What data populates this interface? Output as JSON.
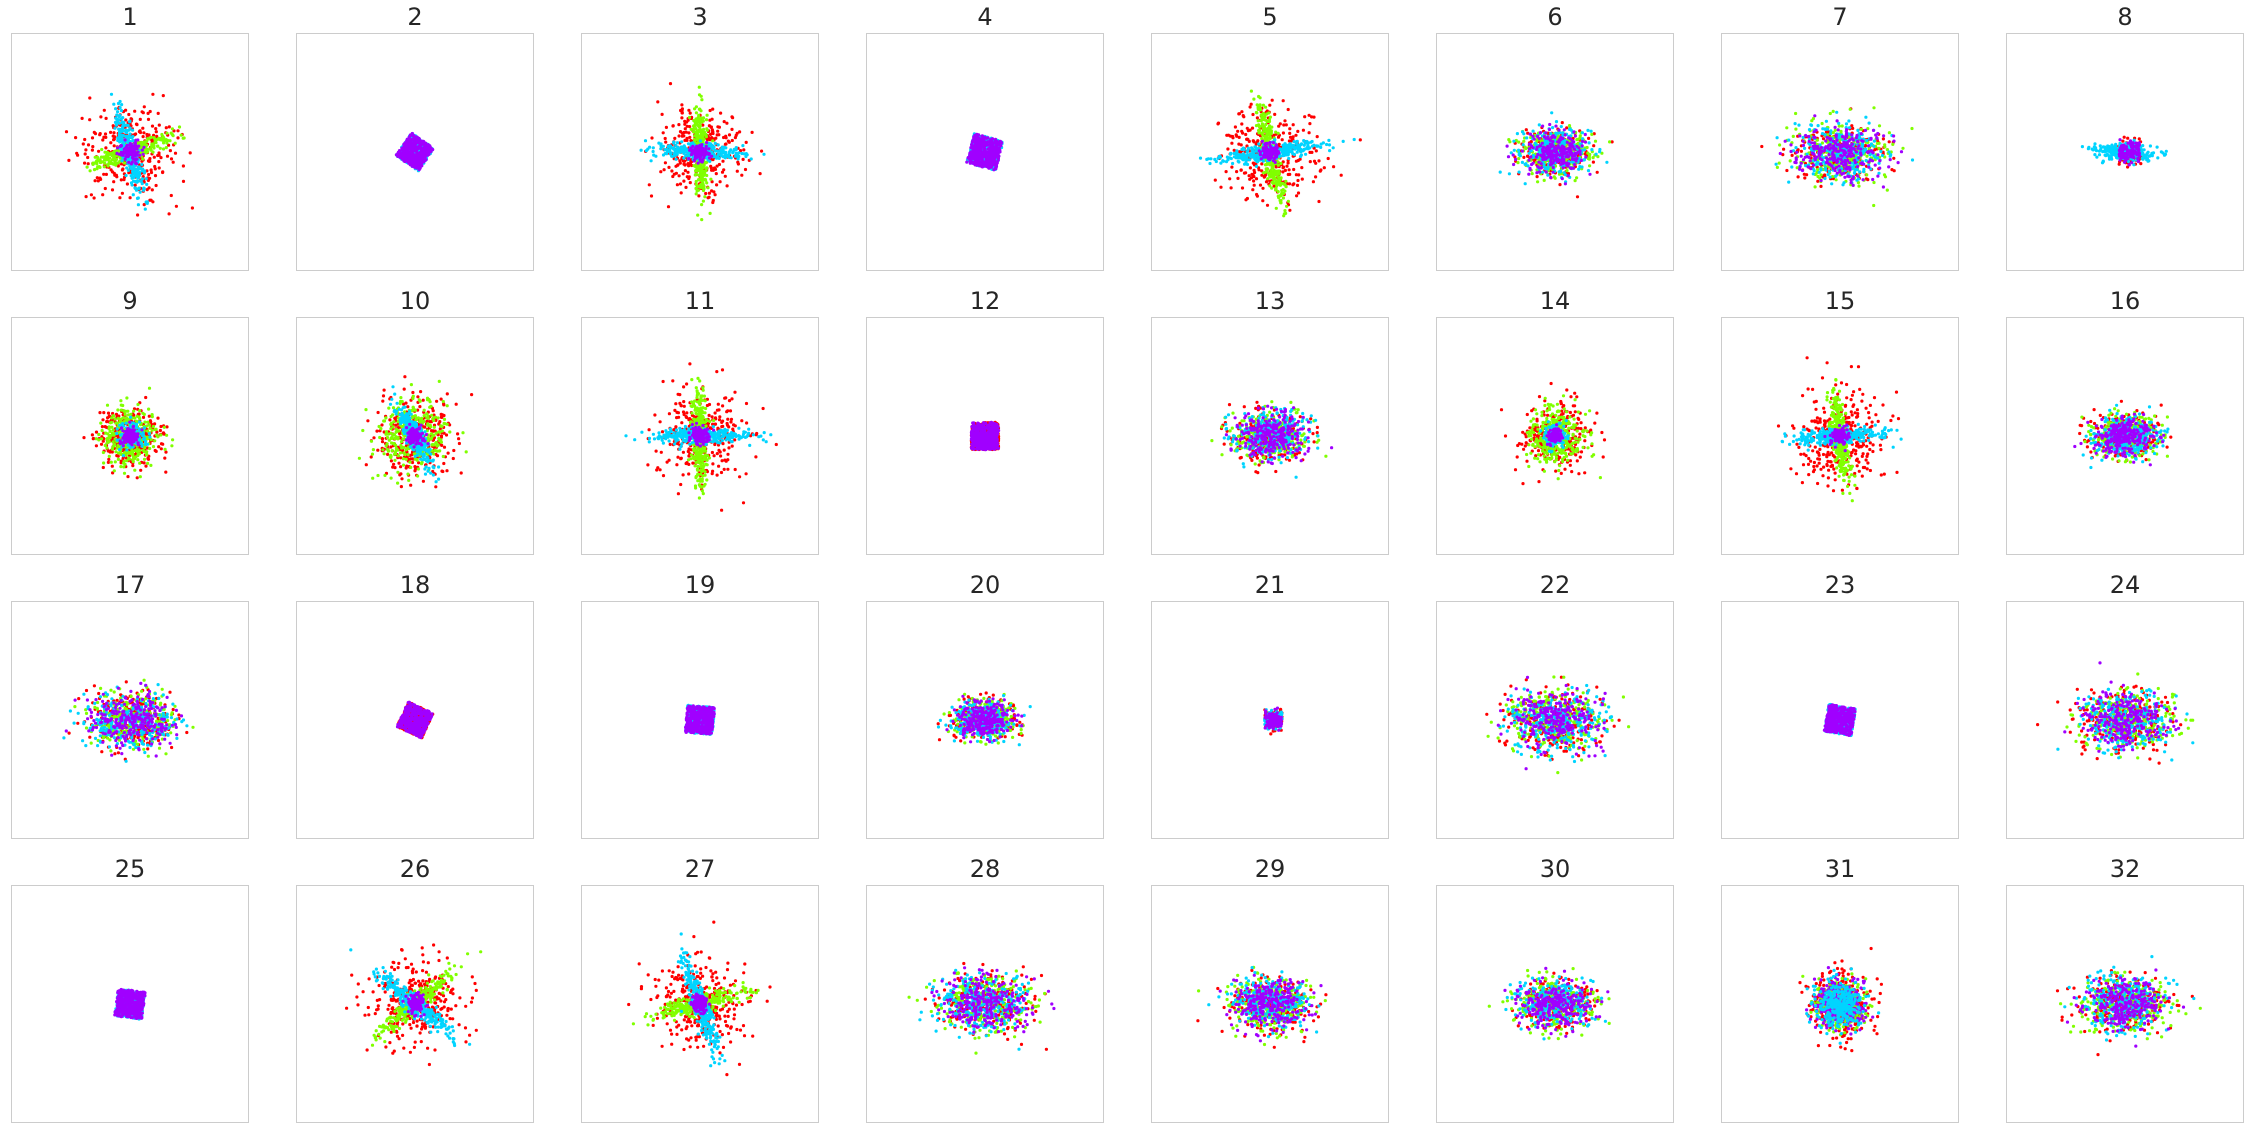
{
  "figure": {
    "layout": "4 rows x 8 columns",
    "background": "#ffffff",
    "frame_color": "#cccccc",
    "title_color": "#262626"
  },
  "colors": {
    "red": "#ff0000",
    "green": "#80ff00",
    "cyan": "#00d4ff",
    "purple": "#a000ff"
  },
  "chart_data": [
    {
      "title": "1",
      "type": "scatter",
      "series": [
        {
          "color": "red",
          "shape": "disc",
          "spread": 1.0
        },
        {
          "color": "green",
          "shape": "bar",
          "angle": -20,
          "spread": 0.8
        },
        {
          "color": "cyan",
          "shape": "bar",
          "angle": 75,
          "spread": 0.8
        },
        {
          "color": "purple",
          "shape": "blob",
          "spread": 0.12
        }
      ]
    },
    {
      "title": "2",
      "type": "scatter",
      "series": [
        {
          "color": "cyan",
          "shape": "square",
          "spread": 0.5,
          "angle": 35
        },
        {
          "color": "purple",
          "shape": "square",
          "spread": 0.5,
          "angle": 35
        }
      ]
    },
    {
      "title": "3",
      "type": "scatter",
      "series": [
        {
          "color": "red",
          "shape": "disc",
          "spread": 0.85
        },
        {
          "color": "green",
          "shape": "bar",
          "angle": 88,
          "spread": 0.8
        },
        {
          "color": "cyan",
          "shape": "bar",
          "angle": 2,
          "spread": 0.8
        },
        {
          "color": "purple",
          "shape": "blob",
          "spread": 0.1
        }
      ]
    },
    {
      "title": "4",
      "type": "scatter",
      "series": [
        {
          "color": "cyan",
          "shape": "square",
          "spread": 0.55,
          "angle": 15
        },
        {
          "color": "purple",
          "shape": "square",
          "spread": 0.55,
          "angle": 15
        }
      ]
    },
    {
      "title": "5",
      "type": "scatter",
      "series": [
        {
          "color": "red",
          "shape": "disc",
          "spread": 1.0
        },
        {
          "color": "green",
          "shape": "bar",
          "angle": 78,
          "spread": 0.85
        },
        {
          "color": "cyan",
          "shape": "bar",
          "angle": -8,
          "spread": 1.0
        },
        {
          "color": "purple",
          "shape": "blob",
          "spread": 0.1
        }
      ]
    },
    {
      "title": "6",
      "type": "scatter",
      "series": [
        {
          "color": "red",
          "shape": "cloud",
          "spread": 0.7
        },
        {
          "color": "green",
          "shape": "cloud",
          "spread": 0.7
        },
        {
          "color": "cyan",
          "shape": "cloud",
          "spread": 0.7
        },
        {
          "color": "purple",
          "shape": "cloud",
          "spread": 0.6
        }
      ]
    },
    {
      "title": "7",
      "type": "scatter",
      "series": [
        {
          "color": "red",
          "shape": "cloud",
          "spread": 0.9
        },
        {
          "color": "green",
          "shape": "cloud",
          "spread": 0.9
        },
        {
          "color": "cyan",
          "shape": "cloud",
          "spread": 0.9
        },
        {
          "color": "purple",
          "shape": "cloud",
          "spread": 0.8
        }
      ]
    },
    {
      "title": "8",
      "type": "scatter",
      "series": [
        {
          "color": "red",
          "shape": "wedge",
          "spread": 0.4
        },
        {
          "color": "cyan",
          "shape": "bar",
          "angle": 5,
          "spread": 0.5
        },
        {
          "color": "purple",
          "shape": "wedge",
          "spread": 0.35
        }
      ]
    },
    {
      "title": "9",
      "type": "scatter",
      "series": [
        {
          "color": "red",
          "shape": "disc",
          "spread": 0.65
        },
        {
          "color": "green",
          "shape": "disc",
          "spread": 0.6
        },
        {
          "color": "cyan",
          "shape": "blob",
          "spread": 0.18
        },
        {
          "color": "purple",
          "shape": "blob",
          "spread": 0.1
        }
      ]
    },
    {
      "title": "10",
      "type": "scatter",
      "series": [
        {
          "color": "red",
          "shape": "disc",
          "spread": 0.85
        },
        {
          "color": "green",
          "shape": "disc",
          "spread": 0.75
        },
        {
          "color": "cyan",
          "shape": "bar",
          "angle": 62,
          "spread": 0.6
        },
        {
          "color": "purple",
          "shape": "blob",
          "spread": 0.1
        }
      ]
    },
    {
      "title": "11",
      "type": "scatter",
      "series": [
        {
          "color": "red",
          "shape": "disc",
          "spread": 0.95
        },
        {
          "color": "green",
          "shape": "bar",
          "angle": 90,
          "spread": 0.85
        },
        {
          "color": "cyan",
          "shape": "bar",
          "angle": 0,
          "spread": 0.95
        },
        {
          "color": "purple",
          "shape": "blob",
          "spread": 0.1
        }
      ]
    },
    {
      "title": "12",
      "type": "scatter",
      "series": [
        {
          "color": "red",
          "shape": "square",
          "spread": 0.5,
          "angle": 0
        },
        {
          "color": "purple",
          "shape": "square",
          "spread": 0.5,
          "angle": 0
        }
      ]
    },
    {
      "title": "13",
      "type": "scatter",
      "series": [
        {
          "color": "red",
          "shape": "cloud",
          "spread": 0.75
        },
        {
          "color": "green",
          "shape": "cloud",
          "spread": 0.75
        },
        {
          "color": "cyan",
          "shape": "cloud",
          "spread": 0.75
        },
        {
          "color": "purple",
          "shape": "cloud",
          "spread": 0.7
        }
      ]
    },
    {
      "title": "14",
      "type": "scatter",
      "series": [
        {
          "color": "red",
          "shape": "disc",
          "spread": 0.7
        },
        {
          "color": "green",
          "shape": "disc",
          "spread": 0.6
        },
        {
          "color": "cyan",
          "shape": "blob",
          "spread": 0.15
        },
        {
          "color": "purple",
          "shape": "blob",
          "spread": 0.08
        }
      ]
    },
    {
      "title": "15",
      "type": "scatter",
      "series": [
        {
          "color": "red",
          "shape": "disc",
          "spread": 1.0
        },
        {
          "color": "green",
          "shape": "bar",
          "angle": 82,
          "spread": 0.8
        },
        {
          "color": "cyan",
          "shape": "bar",
          "angle": -3,
          "spread": 0.9
        },
        {
          "color": "purple",
          "shape": "blob",
          "spread": 0.1
        }
      ]
    },
    {
      "title": "16",
      "type": "scatter",
      "series": [
        {
          "color": "red",
          "shape": "cloud",
          "spread": 0.65
        },
        {
          "color": "green",
          "shape": "cloud",
          "spread": 0.65
        },
        {
          "color": "cyan",
          "shape": "cloud",
          "spread": 0.65
        },
        {
          "color": "purple",
          "shape": "cloud",
          "spread": 0.6
        }
      ]
    },
    {
      "title": "17",
      "type": "scatter",
      "series": [
        {
          "color": "red",
          "shape": "cloud",
          "spread": 0.85
        },
        {
          "color": "green",
          "shape": "cloud",
          "spread": 0.85
        },
        {
          "color": "cyan",
          "shape": "cloud",
          "spread": 0.85
        },
        {
          "color": "purple",
          "shape": "cloud",
          "spread": 0.8
        }
      ]
    },
    {
      "title": "18",
      "type": "scatter",
      "series": [
        {
          "color": "red",
          "shape": "square",
          "spread": 0.5,
          "angle": 25
        },
        {
          "color": "purple",
          "shape": "square",
          "spread": 0.5,
          "angle": 25
        }
      ]
    },
    {
      "title": "19",
      "type": "scatter",
      "series": [
        {
          "color": "cyan",
          "shape": "square",
          "spread": 0.5,
          "angle": 5
        },
        {
          "color": "purple",
          "shape": "square",
          "spread": 0.5,
          "angle": 5
        }
      ]
    },
    {
      "title": "20",
      "type": "scatter",
      "series": [
        {
          "color": "red",
          "shape": "cloud",
          "spread": 0.6
        },
        {
          "color": "green",
          "shape": "cloud",
          "spread": 0.6
        },
        {
          "color": "cyan",
          "shape": "cloud",
          "spread": 0.6
        },
        {
          "color": "purple",
          "shape": "cloud",
          "spread": 0.55
        }
      ]
    },
    {
      "title": "21",
      "type": "scatter",
      "series": [
        {
          "color": "red",
          "shape": "wedge",
          "spread": 0.3
        },
        {
          "color": "cyan",
          "shape": "wedge",
          "spread": 0.3
        },
        {
          "color": "purple",
          "shape": "wedge",
          "spread": 0.28
        }
      ]
    },
    {
      "title": "22",
      "type": "scatter",
      "series": [
        {
          "color": "red",
          "shape": "cloud",
          "spread": 0.95
        },
        {
          "color": "green",
          "shape": "cloud",
          "spread": 0.95
        },
        {
          "color": "cyan",
          "shape": "cloud",
          "spread": 0.95
        },
        {
          "color": "purple",
          "shape": "cloud",
          "spread": 0.9
        }
      ]
    },
    {
      "title": "23",
      "type": "scatter",
      "series": [
        {
          "color": "cyan",
          "shape": "square",
          "spread": 0.5,
          "angle": 10
        },
        {
          "color": "purple",
          "shape": "square",
          "spread": 0.5,
          "angle": 10
        }
      ]
    },
    {
      "title": "24",
      "type": "scatter",
      "series": [
        {
          "color": "red",
          "shape": "cloud",
          "spread": 0.9
        },
        {
          "color": "green",
          "shape": "cloud",
          "spread": 0.9
        },
        {
          "color": "cyan",
          "shape": "cloud",
          "spread": 0.9
        },
        {
          "color": "purple",
          "shape": "cloud",
          "spread": 0.85
        }
      ]
    },
    {
      "title": "25",
      "type": "scatter",
      "series": [
        {
          "color": "cyan",
          "shape": "square",
          "spread": 0.5,
          "angle": 8
        },
        {
          "color": "purple",
          "shape": "square",
          "spread": 0.5,
          "angle": 8
        }
      ]
    },
    {
      "title": "26",
      "type": "scatter",
      "series": [
        {
          "color": "red",
          "shape": "disc",
          "spread": 0.95
        },
        {
          "color": "green",
          "shape": "bar",
          "angle": -40,
          "spread": 0.85
        },
        {
          "color": "cyan",
          "shape": "bar",
          "angle": 40,
          "spread": 0.85
        },
        {
          "color": "purple",
          "shape": "blob",
          "spread": 0.1
        }
      ]
    },
    {
      "title": "27",
      "type": "scatter",
      "series": [
        {
          "color": "red",
          "shape": "disc",
          "spread": 0.95
        },
        {
          "color": "green",
          "shape": "bar",
          "angle": -15,
          "spread": 0.85
        },
        {
          "color": "cyan",
          "shape": "bar",
          "angle": 70,
          "spread": 0.85
        },
        {
          "color": "purple",
          "shape": "blob",
          "spread": 0.1
        }
      ]
    },
    {
      "title": "28",
      "type": "scatter",
      "series": [
        {
          "color": "red",
          "shape": "cloud",
          "spread": 0.9
        },
        {
          "color": "green",
          "shape": "cloud",
          "spread": 0.9
        },
        {
          "color": "cyan",
          "shape": "cloud",
          "spread": 0.9
        },
        {
          "color": "purple",
          "shape": "cloud",
          "spread": 0.85
        }
      ]
    },
    {
      "title": "29",
      "type": "scatter",
      "series": [
        {
          "color": "red",
          "shape": "cloud",
          "spread": 0.8
        },
        {
          "color": "green",
          "shape": "cloud",
          "spread": 0.8
        },
        {
          "color": "cyan",
          "shape": "cloud",
          "spread": 0.8
        },
        {
          "color": "purple",
          "shape": "cloud",
          "spread": 0.75
        }
      ]
    },
    {
      "title": "30",
      "type": "scatter",
      "series": [
        {
          "color": "red",
          "shape": "cloud",
          "spread": 0.75
        },
        {
          "color": "green",
          "shape": "cloud",
          "spread": 0.75
        },
        {
          "color": "cyan",
          "shape": "cloud",
          "spread": 0.75
        },
        {
          "color": "purple",
          "shape": "cloud",
          "spread": 0.7
        }
      ]
    },
    {
      "title": "31",
      "type": "scatter",
      "series": [
        {
          "color": "red",
          "shape": "disc",
          "spread": 0.7
        },
        {
          "color": "green",
          "shape": "disc",
          "spread": 0.5
        },
        {
          "color": "purple",
          "shape": "disc",
          "spread": 0.5
        },
        {
          "color": "cyan",
          "shape": "disc",
          "spread": 0.5
        }
      ]
    },
    {
      "title": "32",
      "type": "scatter",
      "series": [
        {
          "color": "red",
          "shape": "cloud",
          "spread": 0.85
        },
        {
          "color": "green",
          "shape": "cloud",
          "spread": 0.85
        },
        {
          "color": "cyan",
          "shape": "cloud",
          "spread": 0.85
        },
        {
          "color": "purple",
          "shape": "cloud",
          "spread": 0.8
        }
      ]
    }
  ]
}
